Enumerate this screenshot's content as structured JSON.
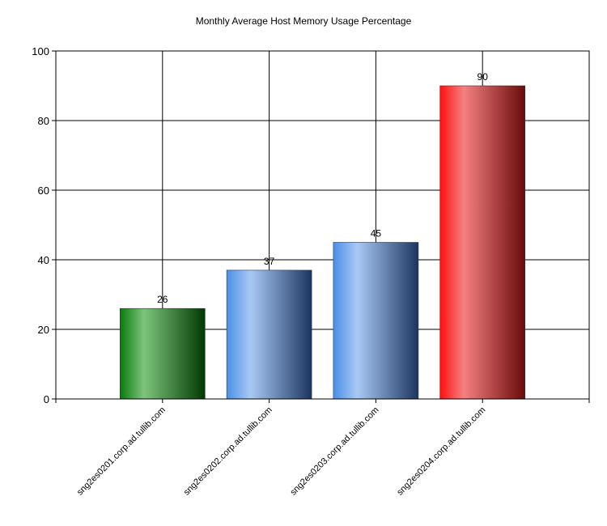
{
  "chart_data": {
    "type": "bar",
    "title": "Monthly Average Host Memory Usage Percentage",
    "xlabel": "",
    "ylabel": "",
    "categories": [
      "sng2es0201.corp.ad.tullib.com",
      "sng2es0202.corp.ad.tullib.com",
      "sng2es0203.corp.ad.tullib.com",
      "sng2es0204.corp.ad.tullib.com"
    ],
    "values": [
      26,
      37,
      45,
      90
    ],
    "data_labels": [
      "26",
      "37",
      "45",
      "90"
    ],
    "ylim": [
      0,
      100
    ],
    "yticks": [
      0,
      20,
      40,
      60,
      80,
      100
    ],
    "ytick_labels": [
      "0",
      "20",
      "40",
      "60",
      "80",
      "100"
    ],
    "grid": true,
    "legend": "none",
    "bar_colors": [
      {
        "dark": "#0a7a0a",
        "light": "#7dc47d",
        "deep": "#023a02"
      },
      {
        "dark": "#4a8fe6",
        "light": "#a9c9f5",
        "deep": "#1c3560"
      },
      {
        "dark": "#4a8fe6",
        "light": "#a9c9f5",
        "deep": "#1c3560"
      },
      {
        "dark": "#ff1010",
        "light": "#f58080",
        "deep": "#6a0a0a"
      }
    ]
  }
}
